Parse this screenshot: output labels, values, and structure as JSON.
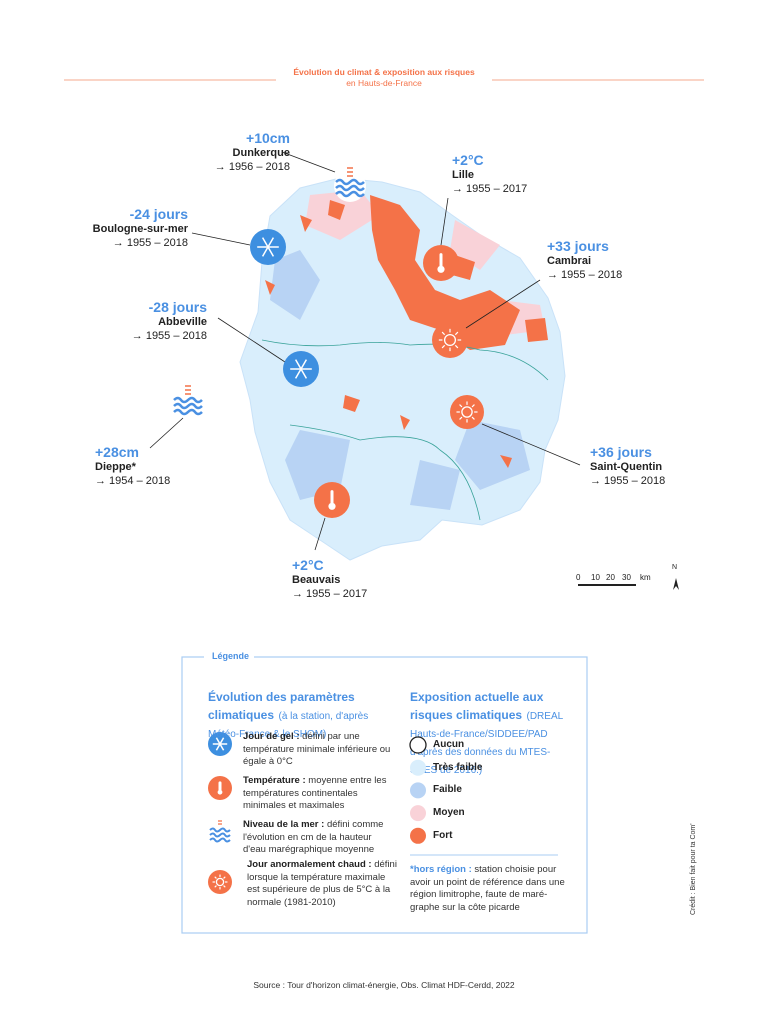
{
  "header": {
    "title": "Évolution du climat & exposition aux risques",
    "subtitle": "en Hauts-de-France"
  },
  "stations": [
    {
      "value": "+10cm",
      "place": "Dunkerque",
      "period": "→ 1956 – 2018"
    },
    {
      "value": "+2°C",
      "place": "Lille",
      "period": "→ 1955 – 2017"
    },
    {
      "value": "-24 jours",
      "place": "Boulogne-sur-mer",
      "period": "→ 1955 – 2018"
    },
    {
      "value": "+33 jours",
      "place": "Cambrai",
      "period": "→ 1955 – 2018"
    },
    {
      "value": "-28 jours",
      "place": "Abbeville",
      "period": "→ 1955 – 2018"
    },
    {
      "value": "+28cm",
      "place": "Dieppe*",
      "period": "→ 1954 – 2018"
    },
    {
      "value": "+36 jours",
      "place": "Saint-Quentin",
      "period": "→ 1955 – 2018"
    },
    {
      "value": "+2°C",
      "place": "Beauvais",
      "period": "→ 1955 – 2017"
    }
  ],
  "scale": {
    "ticks": [
      "0",
      "10",
      "20",
      "30"
    ],
    "unit": "km"
  },
  "north": "N",
  "legend": {
    "title": "Légende",
    "left": {
      "heading": "Évolution des paramètres climatiques",
      "note": "(à la station, d'après Météo-France & le SHOM)",
      "items": [
        {
          "term": "Jour de gel :",
          "text": "défini par une température minimale inférieure ou égale à 0°C"
        },
        {
          "term": "Température :",
          "text": "moyenne entre les températures continentales minimales et maximales"
        },
        {
          "term": "Niveau de la mer :",
          "text": "défini comme l'évolution en cm de la hauteur d'eau marégraphique moyenne"
        },
        {
          "term": "Jour anormalement chaud :",
          "text": "défini lorsque la température maximale est supérieure de plus de 5°C à la normale (1981-2010)"
        }
      ]
    },
    "right": {
      "heading": "Exposition actuelle aux risques climatiques",
      "note": "(DREAL Hauts-de-France/SIDDEE/PAD d'après des données du MTES-SDES de 2016.)",
      "classes": [
        {
          "label": "Aucun",
          "color": "#ffffff"
        },
        {
          "label": "Très faible",
          "color": "#d9eefc"
        },
        {
          "label": "Faible",
          "color": "#b8d3f4"
        },
        {
          "label": "Moyen",
          "color": "#f9d2d8"
        },
        {
          "label": "Fort",
          "color": "#f47248"
        }
      ],
      "footnote": {
        "term": "*hors région :",
        "text": "station choisie pour avoir un point de référence dans une région limitrophe, faute de maré-graphe sur la côte picarde"
      }
    }
  },
  "source": "Source : Tour d'horizon climat-énergie, Obs. Climat HDF-Cerdd, 2022",
  "credit": "Crédit : Bien fait pour ta Com'"
}
